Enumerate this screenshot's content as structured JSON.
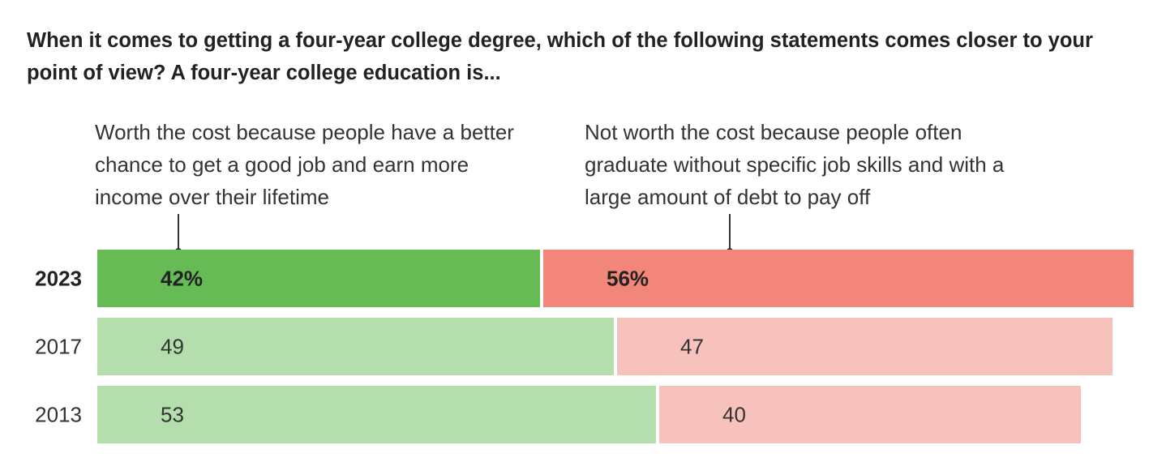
{
  "title": "When it comes to getting a four-year college degree, which of the following statements comes closer to your point of view? A four-year college education is...",
  "chart_data": {
    "type": "bar",
    "orientation": "horizontal",
    "stacked": true,
    "categories": [
      "2023",
      "2017",
      "2013"
    ],
    "series": [
      {
        "name": "Worth the cost because people have a better chance to get a good job and earn more income over their lifetime",
        "values": [
          42,
          49,
          53
        ],
        "labels": [
          "42%",
          "49",
          "53"
        ],
        "color": "#66bb55",
        "color_light": "#b4deab"
      },
      {
        "name": "Not worth the cost because people often graduate without specific job skills and with a large amount of debt to pay off",
        "values": [
          56,
          47,
          40
        ],
        "labels": [
          "56%",
          "47",
          "40"
        ],
        "color": "#f2867a",
        "color_light": "#f7c2bc"
      }
    ],
    "highlight_category": "2023",
    "xlim": [
      0,
      100
    ]
  }
}
